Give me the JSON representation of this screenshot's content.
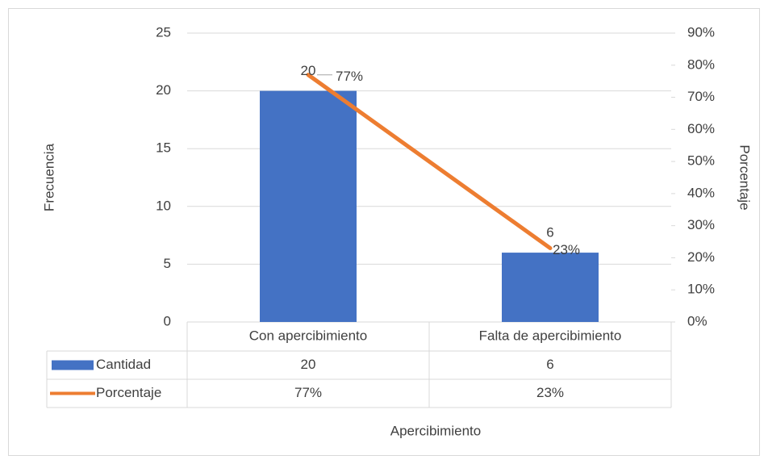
{
  "chart_data": {
    "type": "bar",
    "categories": [
      "Con apercibimiento",
      "Falta de apercibimiento"
    ],
    "series": [
      {
        "name": "Cantidad",
        "type": "bar",
        "color": "#4472c4",
        "values": [
          20,
          6
        ]
      },
      {
        "name": "Porcentaje",
        "type": "line",
        "color": "#ed7d31",
        "axis": "y2",
        "values": [
          77,
          23
        ],
        "value_labels": [
          "77%",
          "23%"
        ]
      }
    ],
    "ylabel": "Frecuencia",
    "y2label": "Porcentaje",
    "xlabel": "Apercibimiento",
    "ylim": [
      0,
      25
    ],
    "yticks": [
      0,
      5,
      10,
      15,
      20,
      25
    ],
    "y2lim": [
      0,
      90
    ],
    "y2ticks": [
      {
        "value": 0,
        "label": "0%"
      },
      {
        "value": 10,
        "label": "10%"
      },
      {
        "value": 20,
        "label": "20%"
      },
      {
        "value": 30,
        "label": "30%"
      },
      {
        "value": 40,
        "label": "40%"
      },
      {
        "value": 50,
        "label": "50%"
      },
      {
        "value": 60,
        "label": "60%"
      },
      {
        "value": 70,
        "label": "70%"
      },
      {
        "value": 80,
        "label": "80%"
      },
      {
        "value": 90,
        "label": "90%"
      }
    ],
    "grid": true,
    "data_table": true
  }
}
